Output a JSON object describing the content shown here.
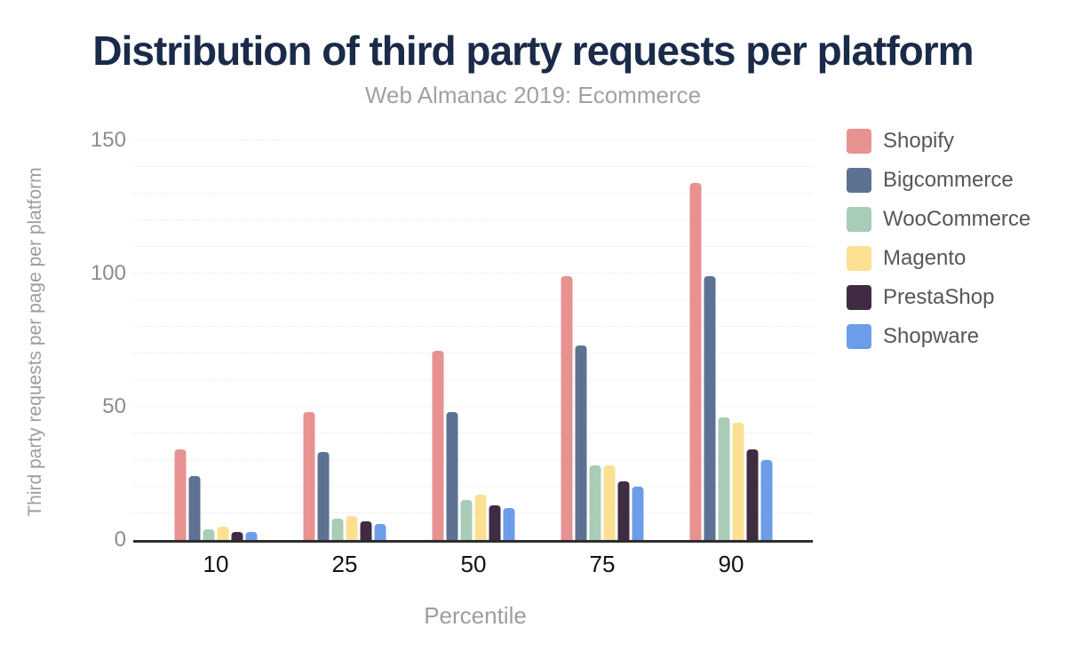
{
  "figure": {
    "title": "Distribution of third party requests per platform",
    "subtitle": "Web Almanac 2019: Ecommerce"
  },
  "chart_data": {
    "type": "bar",
    "title": "Distribution of third party requests per platform",
    "subtitle": "Web Almanac 2019: Ecommerce",
    "xlabel": "Percentile",
    "ylabel": "Third party requests per page per platform",
    "categories": [
      "10",
      "25",
      "50",
      "75",
      "90"
    ],
    "series": [
      {
        "name": "Shopify",
        "color": "#e89191",
        "values": [
          34,
          48,
          71,
          99,
          134
        ]
      },
      {
        "name": "Bigcommerce",
        "color": "#5d7192",
        "values": [
          24,
          33,
          48,
          73,
          99
        ]
      },
      {
        "name": "WooCommerce",
        "color": "#a9ccb6",
        "values": [
          4,
          8,
          15,
          28,
          46
        ]
      },
      {
        "name": "Magento",
        "color": "#fbe093",
        "values": [
          5,
          9,
          17,
          28,
          44
        ]
      },
      {
        "name": "PrestaShop",
        "color": "#3f2b42",
        "values": [
          3,
          7,
          13,
          22,
          34
        ]
      },
      {
        "name": "Shopware",
        "color": "#6d9de9",
        "values": [
          3,
          6,
          12,
          20,
          30
        ]
      }
    ],
    "ylim": [
      0,
      150
    ],
    "y_ticks": [
      0,
      50,
      100,
      150
    ],
    "grid": "horizontal dotted lines every 10 units",
    "legend_position": "right"
  },
  "colors": {
    "background": "#ffffff",
    "title": "#1a2b49",
    "subtitle": "#9fa1a5",
    "axis_line": "#2e2e2e",
    "gridline": "#e9e9e9",
    "y_tick_label": "#8a8c8f",
    "x_tick_label": "#111111",
    "axis_title": "#9b9da1",
    "legend_label": "#55575b"
  }
}
